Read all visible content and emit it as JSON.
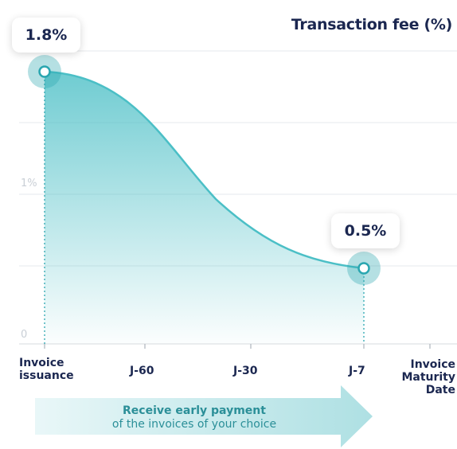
{
  "chart_data": {
    "type": "area",
    "title": "Transaction fee (%)",
    "x_ticks": [
      "Invoice\nissuance",
      "J-60",
      "J-30",
      "J-7",
      "Invoice\nMaturity\nDate"
    ],
    "y_ticks": [
      "0",
      "1%"
    ],
    "ylim": [
      0,
      2
    ],
    "grid": true,
    "series": [
      {
        "points": [
          {
            "x": "Invoice issuance",
            "y": 1.8
          },
          {
            "x": "J-7",
            "y": 0.5
          }
        ]
      }
    ],
    "annotations": [
      {
        "label": "1.8%",
        "at": "Invoice issuance",
        "value": 1.8
      },
      {
        "label": "0.5%",
        "at": "J-7",
        "value": 0.5
      }
    ],
    "colors": {
      "line": "#4bbfc6",
      "fill_top": "#4bbfc6",
      "marker": "#2aa6b0",
      "text": "#1b2750",
      "grid": "#e6e9ec"
    }
  },
  "arrow": {
    "line1": "Receive early payment",
    "line2": "of the invoices of your choice"
  }
}
